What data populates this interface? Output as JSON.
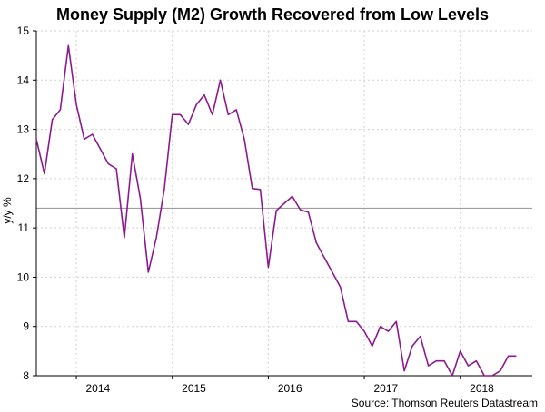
{
  "chart_data": {
    "type": "line",
    "title": "Money Supply (M2) Growth Recovered from Low Levels",
    "xlabel": "",
    "ylabel": "y/y %",
    "ylim": [
      8,
      15
    ],
    "yticks": [
      8,
      9,
      10,
      11,
      12,
      13,
      14,
      15
    ],
    "xlim": [
      2013.583,
      2018.75
    ],
    "xticks": [
      {
        "label": "2014",
        "x": 2014.0
      },
      {
        "label": "2015",
        "x": 2015.0
      },
      {
        "label": "2016",
        "x": 2016.0
      },
      {
        "label": "2017",
        "x": 2017.0
      },
      {
        "label": "2018",
        "x": 2018.0
      }
    ],
    "grid": true,
    "reference_line": {
      "y": 11.4,
      "color": "#9e9e9e"
    },
    "source": "Source: Thomson Reuters Datastream",
    "series": [
      {
        "name": "M2 y/y %",
        "color": "#8b1a8f",
        "x": [
          2013.583,
          2013.667,
          2013.75,
          2013.833,
          2013.917,
          2014.0,
          2014.083,
          2014.167,
          2014.25,
          2014.333,
          2014.417,
          2014.5,
          2014.583,
          2014.667,
          2014.75,
          2014.833,
          2014.917,
          2015.0,
          2015.083,
          2015.167,
          2015.25,
          2015.333,
          2015.417,
          2015.5,
          2015.583,
          2015.667,
          2015.75,
          2015.833,
          2015.917,
          2016.0,
          2016.083,
          2016.167,
          2016.25,
          2016.333,
          2016.417,
          2016.5,
          2016.583,
          2016.667,
          2016.75,
          2016.833,
          2016.917,
          2017.0,
          2017.083,
          2017.167,
          2017.25,
          2017.333,
          2017.417,
          2017.5,
          2017.583,
          2017.667,
          2017.75,
          2017.833,
          2017.917,
          2018.0,
          2018.083,
          2018.167,
          2018.25,
          2018.333,
          2018.417,
          2018.5,
          2018.583
        ],
        "values": [
          12.8,
          12.1,
          13.2,
          13.4,
          14.7,
          13.5,
          12.8,
          12.9,
          12.6,
          12.3,
          12.2,
          10.8,
          12.5,
          11.6,
          10.1,
          10.8,
          11.8,
          13.3,
          13.3,
          13.1,
          13.5,
          13.7,
          13.3,
          14.0,
          13.3,
          13.4,
          12.8,
          11.8,
          11.78,
          10.2,
          11.35,
          11.5,
          11.64,
          11.37,
          11.32,
          10.7,
          10.4,
          10.1,
          9.8,
          9.1,
          9.1,
          8.9,
          8.6,
          9.0,
          8.9,
          9.1,
          8.1,
          8.6,
          8.8,
          8.2,
          8.3,
          8.3,
          8.0,
          8.5,
          8.2,
          8.3,
          8.0,
          8.0,
          8.1,
          8.4,
          8.4
        ]
      }
    ]
  }
}
